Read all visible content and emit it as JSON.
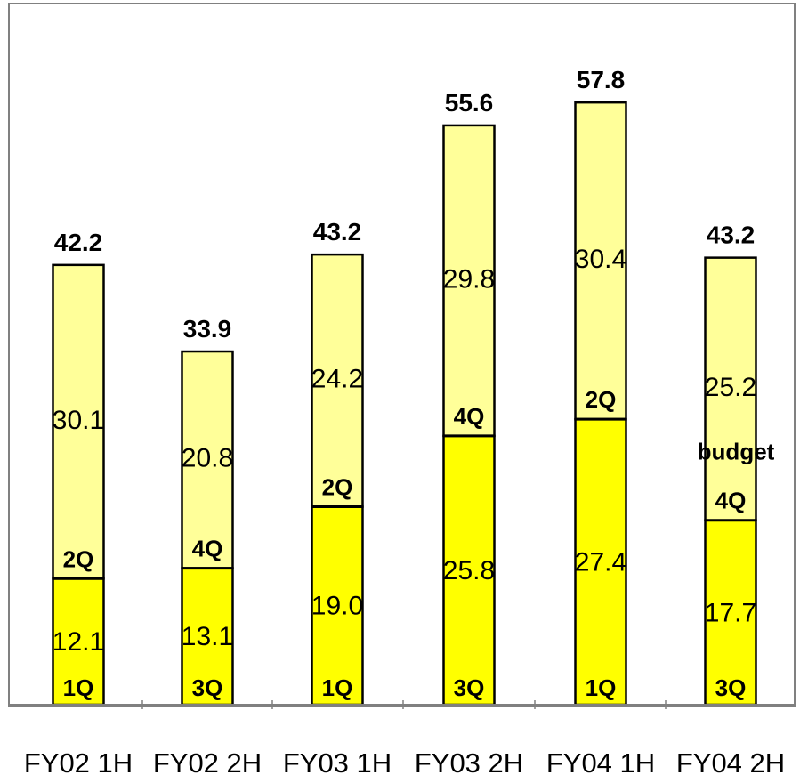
{
  "chart_data": {
    "type": "bar",
    "stacked": true,
    "categories": [
      "FY02 1H",
      "FY02 2H",
      "FY03 1H",
      "FY03 2H",
      "FY04 1H",
      "FY04 2H"
    ],
    "series": [
      {
        "values": [
          12.1,
          13.1,
          19.0,
          25.8,
          27.4,
          17.7
        ],
        "labels": [
          "12.1",
          "13.1",
          "19.0",
          "25.8",
          "27.4",
          "17.7"
        ]
      },
      {
        "values": [
          30.1,
          20.8,
          24.2,
          29.8,
          30.4,
          25.2
        ],
        "labels": [
          "30.1",
          "20.8",
          "24.2",
          "29.8",
          "30.4",
          "25.2"
        ]
      }
    ],
    "totals": [
      "42.2",
      "33.9",
      "43.2",
      "55.6",
      "57.8",
      "43.2"
    ],
    "quarter_labels_lower": [
      "1Q",
      "3Q",
      "1Q",
      "3Q",
      "1Q",
      "3Q"
    ],
    "quarter_labels_upper": [
      "2Q",
      "4Q",
      "2Q",
      "4Q",
      "2Q",
      "4Q"
    ],
    "annotation": "budget",
    "ylim": [
      0,
      75
    ],
    "grid": false,
    "colors": {
      "lower": "#FFFF00",
      "upper": "#FFFF99",
      "outline": "#000000",
      "frame": "#808080"
    }
  }
}
